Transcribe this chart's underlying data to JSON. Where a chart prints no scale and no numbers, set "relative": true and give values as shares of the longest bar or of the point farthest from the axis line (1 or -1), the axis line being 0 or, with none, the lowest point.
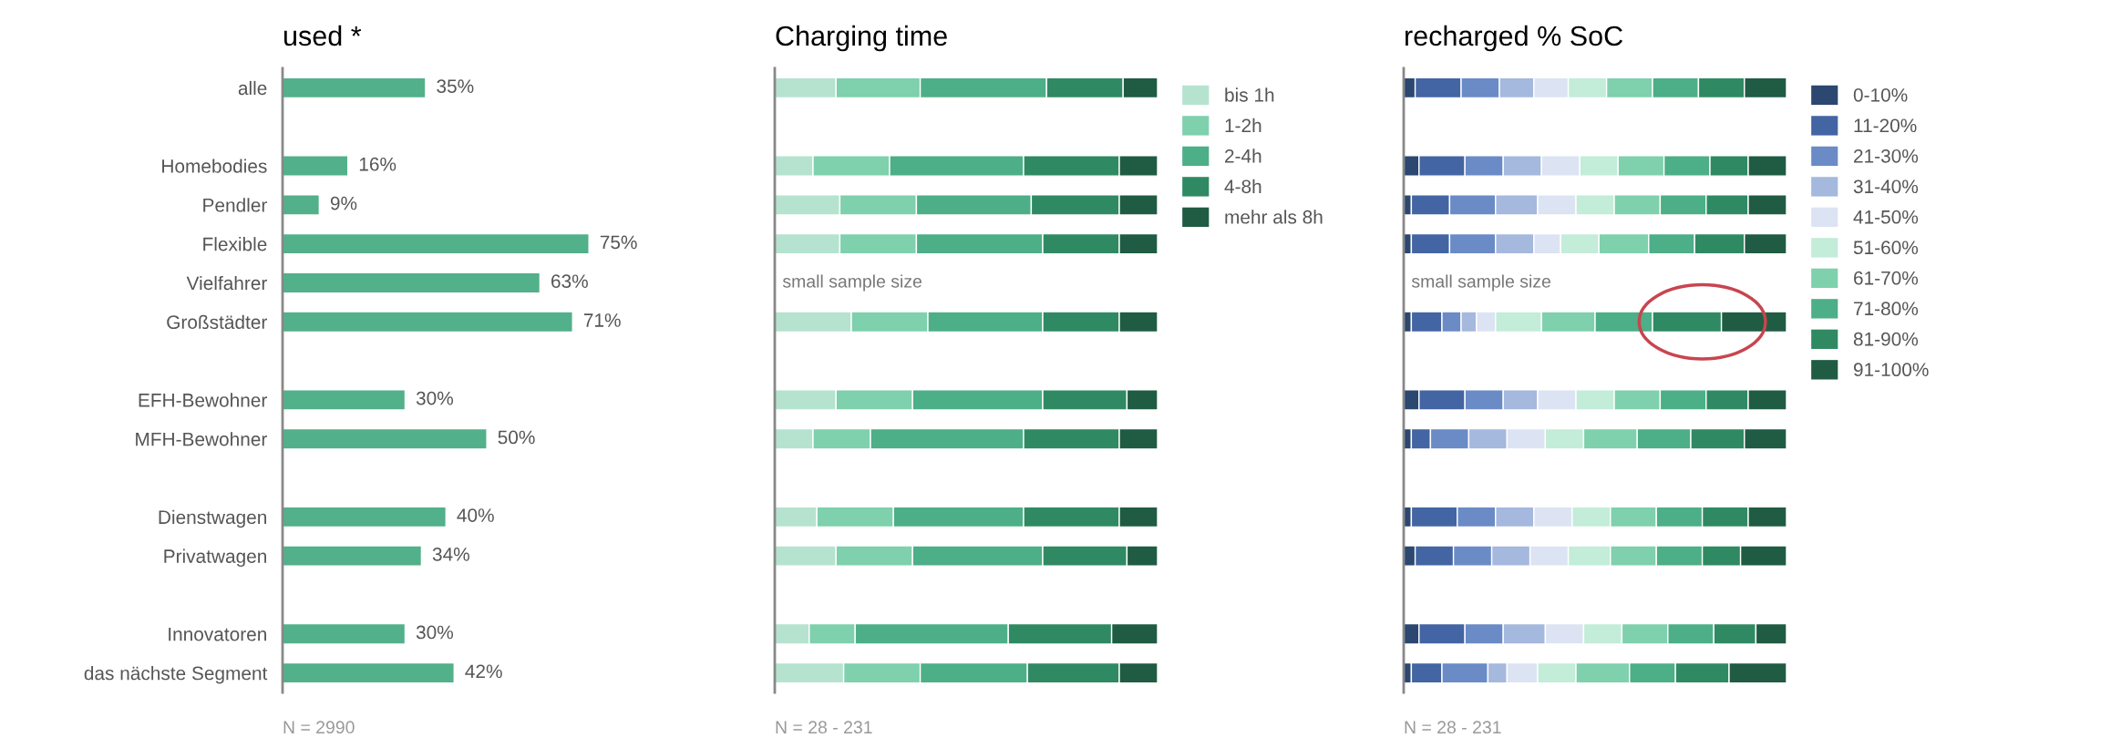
{
  "chart_data": [
    {
      "type": "bar",
      "orientation": "horizontal",
      "title": "used *",
      "categories": [
        "alle",
        null,
        "Homebodies",
        "Pendler",
        "Flexible",
        "Vielfahrer",
        "Großstädter",
        null,
        "EFH-Bewohner",
        "MFH-Bewohner",
        null,
        "Dienstwagen",
        "Privatwagen",
        null,
        "Innovatoren",
        "das nächste Segment"
      ],
      "series": [
        {
          "color": "#52b08a",
          "values": [
            35,
            null,
            16,
            9,
            75,
            63,
            71,
            null,
            30,
            50,
            null,
            40,
            34,
            null,
            30,
            42
          ],
          "value_labels": [
            "35%",
            null,
            "16%",
            "9%",
            "75%",
            "63%",
            "71%",
            null,
            "30%",
            "50%",
            null,
            "40%",
            "34%",
            null,
            "30%",
            "42%"
          ]
        }
      ],
      "tick_labels": "y",
      "grid": false,
      "legend": false,
      "annotations": [
        "N = 2990"
      ]
    },
    {
      "type": "bar",
      "orientation": "horizontal",
      "stacked": true,
      "relative": true,
      "title": "Charging time",
      "categories": [
        null,
        null,
        null,
        null,
        null,
        null,
        null,
        null,
        null,
        null,
        null,
        null,
        null,
        null,
        null,
        null
      ],
      "series": [
        {
          "name": "bis 1h",
          "color": "#b5e3cf",
          "values": [
            0.16,
            null,
            0.1,
            0.17,
            0.17,
            null,
            0.2,
            null,
            0.16,
            0.1,
            null,
            0.11,
            0.16,
            null,
            0.09,
            0.18
          ]
        },
        {
          "name": "1-2h",
          "color": "#7fd0ad",
          "values": [
            0.22,
            null,
            0.2,
            0.2,
            0.2,
            null,
            0.2,
            null,
            0.2,
            0.15,
            null,
            0.2,
            0.2,
            null,
            0.12,
            0.2
          ]
        },
        {
          "name": "2-4h",
          "color": "#4caf87",
          "values": [
            0.33,
            null,
            0.35,
            0.3,
            0.33,
            null,
            0.3,
            null,
            0.34,
            0.4,
            null,
            0.34,
            0.34,
            null,
            0.4,
            0.28
          ]
        },
        {
          "name": "4-8h",
          "color": "#2f8a63",
          "values": [
            0.2,
            null,
            0.25,
            0.23,
            0.2,
            null,
            0.2,
            null,
            0.22,
            0.25,
            null,
            0.25,
            0.22,
            null,
            0.27,
            0.24
          ]
        },
        {
          "name": "mehr als 8h",
          "color": "#1f5c43",
          "values": [
            0.09,
            null,
            0.1,
            0.1,
            0.1,
            null,
            0.1,
            null,
            0.08,
            0.1,
            null,
            0.1,
            0.08,
            null,
            0.12,
            0.1
          ]
        }
      ],
      "tick_labels": false,
      "grid": false,
      "legend": "right",
      "annotations": [
        "small sample size",
        "N = 28 - 231"
      ]
    },
    {
      "type": "bar",
      "orientation": "horizontal",
      "stacked": true,
      "relative": true,
      "title": "recharged % SoC",
      "categories": [
        null,
        null,
        null,
        null,
        null,
        null,
        null,
        null,
        null,
        null,
        null,
        null,
        null,
        null,
        null,
        null
      ],
      "series": [
        {
          "name": "0-10%",
          "color": "#2c4770",
          "values": [
            0.03,
            null,
            0.04,
            0.02,
            0.02,
            null,
            0.02,
            null,
            0.04,
            0.02,
            null,
            0.02,
            0.03,
            null,
            0.04,
            0.02
          ]
        },
        {
          "name": "11-20%",
          "color": "#4365a3",
          "values": [
            0.12,
            null,
            0.12,
            0.1,
            0.1,
            null,
            0.08,
            null,
            0.12,
            0.05,
            null,
            0.12,
            0.1,
            null,
            0.12,
            0.08
          ]
        },
        {
          "name": "21-30%",
          "color": "#6b8bc6",
          "values": [
            0.1,
            null,
            0.1,
            0.12,
            0.12,
            null,
            0.05,
            null,
            0.1,
            0.1,
            null,
            0.1,
            0.1,
            null,
            0.1,
            0.12
          ]
        },
        {
          "name": "31-40%",
          "color": "#a5b8dd",
          "values": [
            0.09,
            null,
            0.1,
            0.11,
            0.1,
            null,
            0.04,
            null,
            0.09,
            0.1,
            null,
            0.1,
            0.1,
            null,
            0.11,
            0.05
          ]
        },
        {
          "name": "41-50%",
          "color": "#dce4f3",
          "values": [
            0.09,
            null,
            0.1,
            0.1,
            0.07,
            null,
            0.05,
            null,
            0.1,
            0.1,
            null,
            0.1,
            0.1,
            null,
            0.1,
            0.08
          ]
        },
        {
          "name": "51-60%",
          "color": "#c3ecd9",
          "values": [
            0.1,
            null,
            0.1,
            0.1,
            0.1,
            null,
            0.12,
            null,
            0.1,
            0.1,
            null,
            0.1,
            0.11,
            null,
            0.1,
            0.1
          ]
        },
        {
          "name": "61-70%",
          "color": "#7fd0ad",
          "values": [
            0.12,
            null,
            0.12,
            0.12,
            0.13,
            null,
            0.14,
            null,
            0.12,
            0.14,
            null,
            0.12,
            0.12,
            null,
            0.12,
            0.14
          ]
        },
        {
          "name": "71-80%",
          "color": "#4caf87",
          "values": [
            0.12,
            null,
            0.12,
            0.12,
            0.12,
            null,
            0.15,
            null,
            0.12,
            0.14,
            null,
            0.12,
            0.12,
            null,
            0.12,
            0.12
          ]
        },
        {
          "name": "81-90%",
          "color": "#2f8a63",
          "values": [
            0.12,
            null,
            0.1,
            0.11,
            0.13,
            null,
            0.18,
            null,
            0.11,
            0.14,
            null,
            0.12,
            0.1,
            null,
            0.11,
            0.14
          ]
        },
        {
          "name": "91-100%",
          "color": "#1f5c43",
          "values": [
            0.11,
            null,
            0.1,
            0.1,
            0.11,
            null,
            0.17,
            null,
            0.1,
            0.11,
            null,
            0.1,
            0.12,
            null,
            0.08,
            0.15
          ]
        }
      ],
      "tick_labels": false,
      "grid": false,
      "legend": "right",
      "annotations": [
        "small sample size",
        "N = 28 - 231"
      ]
    }
  ]
}
